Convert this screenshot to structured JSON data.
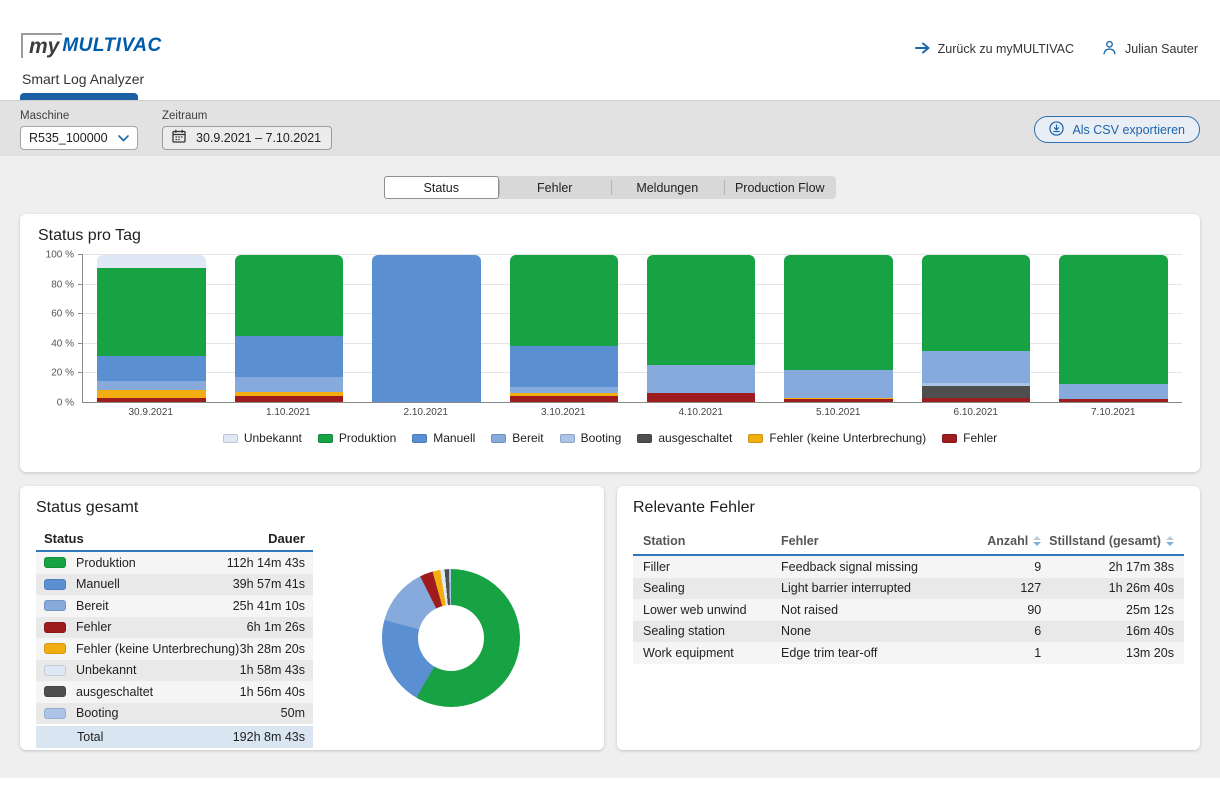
{
  "header": {
    "logo_my": "my",
    "logo_brand": "MULTIVAC",
    "app_tab": "Smart Log Analyzer",
    "back_link": "Zurück zu myMULTIVAC",
    "user_name": "Julian Sauter"
  },
  "filters": {
    "machine_label": "Maschine",
    "machine_value": "R535_100000",
    "period_label": "Zeitraum",
    "period_value": "30.9.2021 – 7.10.2021",
    "export_button": "Als CSV exportieren"
  },
  "tabs": [
    {
      "label": "Status",
      "active": true
    },
    {
      "label": "Fehler",
      "active": false
    },
    {
      "label": "Meldungen",
      "active": false
    },
    {
      "label": "Production Flow",
      "active": false
    }
  ],
  "cards": {
    "status_per_day_title": "Status pro Tag",
    "status_total_title": "Status gesamt",
    "relevant_errors_title": "Relevante Fehler"
  },
  "chart_data": [
    {
      "type": "bar",
      "stacked": true,
      "title": "Status pro Tag",
      "unit": "percent of day",
      "categories": [
        "30.9.2021",
        "1.10.2021",
        "2.10.2021",
        "3.10.2021",
        "4.10.2021",
        "5.10.2021",
        "6.10.2021",
        "7.10.2021"
      ],
      "series": [
        {
          "name": "Fehler",
          "color": "#9e1b1e",
          "values": [
            2.5,
            4,
            0,
            4,
            6,
            2,
            3,
            2
          ]
        },
        {
          "name": "Fehler (keine Unterbrechung)",
          "color": "#f2ae11",
          "values": [
            5.5,
            3,
            0,
            2,
            0,
            1,
            0,
            0
          ]
        },
        {
          "name": "ausgeschaltet",
          "color": "#4e4e4e",
          "values": [
            0,
            0,
            0,
            0,
            0,
            0,
            8,
            0
          ]
        },
        {
          "name": "Booting",
          "color": "#abc4e8",
          "values": [
            0,
            0,
            0,
            0,
            0,
            0,
            2,
            0
          ]
        },
        {
          "name": "Bereit",
          "color": "#87aadc",
          "values": [
            6,
            10,
            0,
            4,
            19,
            19,
            22,
            10
          ]
        },
        {
          "name": "Manuell",
          "color": "#5a90d2",
          "values": [
            17.5,
            28,
            100,
            28,
            0,
            0,
            0,
            0
          ]
        },
        {
          "name": "Produktion",
          "color": "#17a343",
          "values": [
            60,
            55,
            0,
            62,
            75,
            78,
            65,
            88
          ]
        },
        {
          "name": "Unbekannt",
          "color": "#dfe9f6",
          "values": [
            8.5,
            0,
            0,
            0,
            0,
            0,
            0,
            0
          ]
        }
      ],
      "ylim": [
        0,
        100
      ],
      "yticks": [
        "0 %",
        "20 %",
        "40 %",
        "60 %",
        "80 %",
        "100 %"
      ],
      "grid": true,
      "legend_position": "bottom",
      "legend_order": [
        "Unbekannt",
        "Produktion",
        "Manuell",
        "Bereit",
        "Booting",
        "ausgeschaltet",
        "Fehler (keine Unterbrechung)",
        "Fehler"
      ]
    },
    {
      "type": "pie",
      "donut": true,
      "title": "Status gesamt",
      "labels": [
        "Produktion",
        "Manuell",
        "Bereit",
        "Fehler",
        "Fehler (keine Unterbrechung)",
        "Unbekannt",
        "ausgeschaltet",
        "Booting"
      ],
      "values": [
        58.4,
        20.8,
        13.4,
        3.1,
        1.8,
        1.0,
        1.0,
        0.5
      ],
      "colors": [
        "#17a343",
        "#5a90d2",
        "#87aadc",
        "#9e1b1e",
        "#f2ae11",
        "#dfe9f6",
        "#4e4e4e",
        "#abc4e8"
      ]
    }
  ],
  "status_total": {
    "col_status": "Status",
    "col_dauer": "Dauer",
    "rows": [
      {
        "label": "Produktion",
        "value": "112h 14m 43s",
        "color": "#17a343"
      },
      {
        "label": "Manuell",
        "value": "39h 57m 41s",
        "color": "#5a90d2"
      },
      {
        "label": "Bereit",
        "value": "25h 41m 10s",
        "color": "#87aadc"
      },
      {
        "label": "Fehler",
        "value": "6h 1m 26s",
        "color": "#9e1b1e"
      },
      {
        "label": "Fehler (keine Unterbrechung)",
        "value": "3h 28m 20s",
        "color": "#f2ae11"
      },
      {
        "label": "Unbekannt",
        "value": "1h 58m 43s",
        "color": "#dfe9f6"
      },
      {
        "label": "ausgeschaltet",
        "value": "1h 56m 40s",
        "color": "#4e4e4e"
      },
      {
        "label": "Booting",
        "value": "50m",
        "color": "#abc4e8"
      }
    ],
    "total_label": "Total",
    "total_value": "192h 8m 43s"
  },
  "relevant_errors": {
    "columns": [
      "Station",
      "Fehler",
      "Anzahl",
      "Stillstand (gesamt)"
    ],
    "rows": [
      [
        "Filler",
        "Feedback signal missing",
        "9",
        "2h 17m 38s"
      ],
      [
        "Sealing",
        "Light barrier interrupted",
        "127",
        "1h 26m 40s"
      ],
      [
        "Lower web unwind",
        "Not raised",
        "90",
        "25m 12s"
      ],
      [
        "Sealing station",
        "None",
        "6",
        "16m 40s"
      ],
      [
        "Work equipment",
        "Edge trim tear-off",
        "1",
        "13m 20s"
      ]
    ]
  },
  "colors": {
    "brand_blue": "#005ca9",
    "accent_blue": "#1b66ad",
    "tab_underline": "#1b5fa7",
    "table_header_rule": "#2e77bb",
    "total_row_bg": "#d9e5f1",
    "filter_bar_bg": "#e2e2e2",
    "content_bg": "#efefef"
  }
}
